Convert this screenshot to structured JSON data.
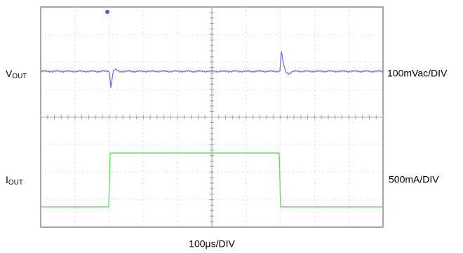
{
  "labels": {
    "vout": {
      "main": "V",
      "sub": "OUT"
    },
    "iout": {
      "main": "I",
      "sub": "OUT"
    },
    "v_scale": "100mVac/DIV",
    "i_scale": "500mA/DIV",
    "time_scale": "100μs/DIV"
  }
}
